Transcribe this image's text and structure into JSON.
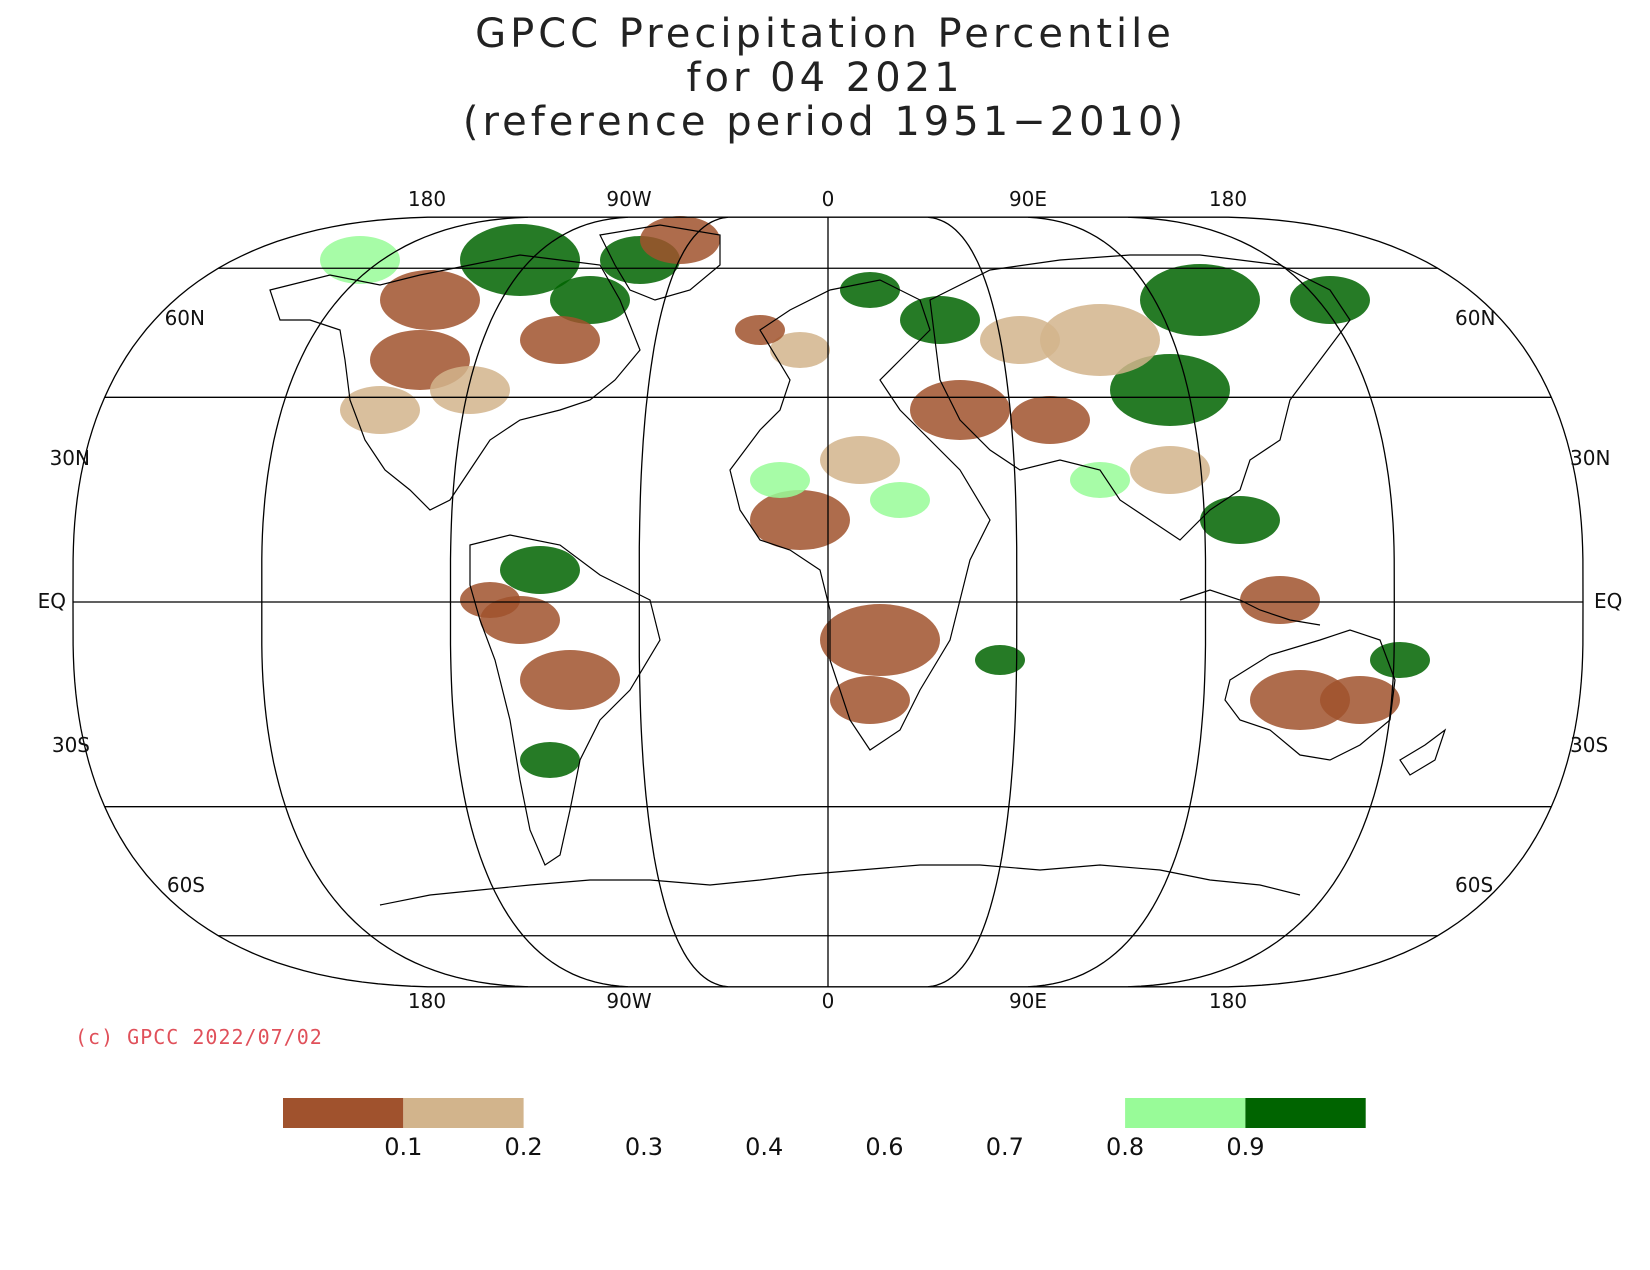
{
  "title": {
    "line1": "GPCC Precipitation Percentile",
    "line2": "for 04 2021",
    "line3": "(reference period 1951−2010)"
  },
  "copyright": "(c) GPCC 2022/07/02",
  "map": {
    "projection": "robinson",
    "top_lon_labels": [
      "180",
      "90W",
      "0",
      "90E",
      "180"
    ],
    "bottom_lon_labels": [
      "180",
      "90W",
      "0",
      "90E",
      "180"
    ],
    "lat_labels_left": [
      "60N",
      "30N",
      "EQ",
      "30S",
      "60S"
    ],
    "lat_labels_right": [
      "60N",
      "30N",
      "EQ",
      "30S",
      "60S"
    ]
  },
  "legend": {
    "tick_labels": [
      "0.1",
      "0.2",
      "0.3",
      "0.4",
      "0.6",
      "0.7",
      "0.8",
      "0.9"
    ],
    "bins": [
      {
        "color": "#a0522d"
      },
      {
        "color": "#d2b48c"
      },
      {
        "color": "#ffffff"
      },
      {
        "color": "#ffffff"
      },
      {
        "color": "#ffffff"
      },
      {
        "color": "#ffffff"
      },
      {
        "color": "#ffffff"
      },
      {
        "color": "#98fb98"
      },
      {
        "color": "#006400"
      }
    ]
  },
  "colors": {
    "very_dry": "#a0522d",
    "dry": "#d2b48c",
    "wet": "#98fb98",
    "very_wet": "#006400"
  }
}
